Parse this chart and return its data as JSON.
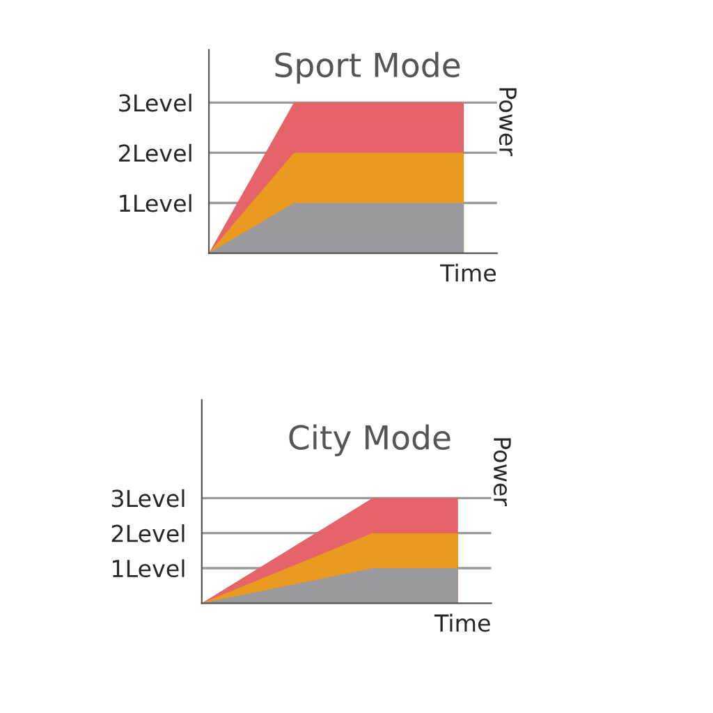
{
  "chart_data": [
    {
      "type": "area",
      "title": "City Mode",
      "xlabel": "Time",
      "ylabel": "Power",
      "categories": [
        null,
        null,
        null,
        null
      ],
      "ylim": [
        0,
        5.8
      ],
      "yticks": [
        {
          "value": 1,
          "label": "1Level"
        },
        {
          "value": 2,
          "label": "2Level"
        },
        {
          "value": 3,
          "label": "3Level"
        }
      ],
      "grid": "y",
      "series": [
        {
          "color": "#9a9a9e",
          "values": [
            0,
            0.5,
            1,
            1
          ]
        },
        {
          "color": "#ea9a1e",
          "values": [
            0,
            1,
            2,
            2
          ]
        },
        {
          "color": "#e5646a",
          "values": [
            0,
            1.5,
            3,
            3
          ]
        }
      ]
    },
    {
      "type": "area",
      "title": "Sport Mode",
      "xlabel": "Time",
      "ylabel": "Power",
      "categories": [
        null,
        null,
        null,
        null
      ],
      "ylim": [
        0,
        4.05
      ],
      "yticks": [
        {
          "value": 1,
          "label": "1Level"
        },
        {
          "value": 2,
          "label": "2Level"
        },
        {
          "value": 3,
          "label": "3Level"
        }
      ],
      "grid": "y",
      "series": [
        {
          "color": "#9a9a9e",
          "values": [
            0,
            1,
            1,
            1
          ]
        },
        {
          "color": "#ea9a1e",
          "values": [
            0,
            2,
            2,
            2
          ]
        },
        {
          "color": "#e5646a",
          "values": [
            0,
            3,
            3,
            3
          ]
        }
      ]
    }
  ]
}
